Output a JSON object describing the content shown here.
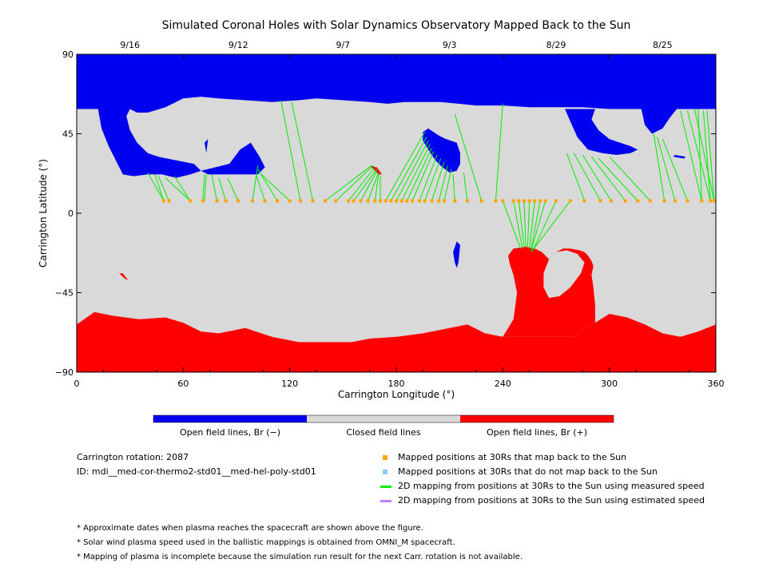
{
  "chart_data": {
    "type": "map",
    "title": "Simulated Coronal Holes with Solar Dynamics Observatory Mapped Back to the Sun",
    "xlabel": "Carrington Longitude (°)",
    "ylabel": "Carrington Latitude (°)",
    "xlim": [
      0,
      360
    ],
    "ylim": [
      -90,
      90
    ],
    "x_ticks": [
      "0",
      "60",
      "120",
      "180",
      "240",
      "300",
      "360"
    ],
    "y_ticks": [
      "90",
      "45",
      "0",
      "−45",
      "−90"
    ],
    "date_ticks": [
      {
        "lon": 30,
        "label": "9/16"
      },
      {
        "lon": 91,
        "label": "9/12"
      },
      {
        "lon": 150,
        "label": "9/7"
      },
      {
        "lon": 210,
        "label": "9/3"
      },
      {
        "lon": 270,
        "label": "8/29"
      },
      {
        "lon": 330,
        "label": "8/25"
      }
    ],
    "colors": {
      "open_negative": "#0000f0",
      "closed": "#d9d9d9",
      "open_positive": "#ff0000",
      "mapped_back": "#ffa500",
      "not_mapped_back": "#87cefa",
      "measured_speed": "#00ee00",
      "estimated_speed": "#c080ff"
    },
    "regions": {
      "north_cap_boundary": [
        [
          0,
          59
        ],
        [
          30,
          59
        ],
        [
          34,
          57
        ],
        [
          40,
          57
        ],
        [
          50,
          60
        ],
        [
          60,
          65
        ],
        [
          70,
          66
        ],
        [
          80,
          65
        ],
        [
          95,
          64
        ],
        [
          110,
          63
        ],
        [
          125,
          64
        ],
        [
          135,
          65
        ],
        [
          150,
          64
        ],
        [
          165,
          63
        ],
        [
          175,
          62
        ],
        [
          185,
          63
        ],
        [
          195,
          63
        ],
        [
          205,
          63
        ],
        [
          215,
          62
        ],
        [
          225,
          61
        ],
        [
          240,
          61
        ],
        [
          255,
          60
        ],
        [
          270,
          60
        ],
        [
          285,
          60
        ],
        [
          300,
          59
        ],
        [
          315,
          59
        ],
        [
          330,
          59
        ],
        [
          345,
          59
        ],
        [
          360,
          59
        ]
      ],
      "south_cap_boundary": [
        [
          0,
          -63
        ],
        [
          10,
          -56
        ],
        [
          20,
          -58
        ],
        [
          35,
          -60
        ],
        [
          50,
          -59
        ],
        [
          60,
          -62
        ],
        [
          70,
          -67
        ],
        [
          80,
          -68
        ],
        [
          95,
          -65
        ],
        [
          110,
          -70
        ],
        [
          125,
          -73
        ],
        [
          140,
          -73
        ],
        [
          155,
          -73
        ],
        [
          165,
          -71
        ],
        [
          180,
          -70
        ],
        [
          195,
          -68
        ],
        [
          210,
          -65
        ],
        [
          220,
          -63
        ],
        [
          230,
          -68
        ],
        [
          240,
          -70
        ],
        [
          250,
          -70
        ],
        [
          280,
          -70
        ],
        [
          292,
          -62
        ],
        [
          300,
          -57
        ],
        [
          310,
          -59
        ],
        [
          320,
          -63
        ],
        [
          330,
          -68
        ],
        [
          340,
          -70
        ],
        [
          350,
          -67
        ],
        [
          360,
          -63
        ]
      ]
    },
    "mapped_positions_lat": 7,
    "mapped_positions_lon": [
      49,
      52,
      64,
      71,
      79,
      84,
      91,
      99,
      106,
      113,
      120,
      126,
      133,
      140,
      146,
      153,
      156,
      160,
      164,
      168,
      171,
      174,
      177,
      180,
      183,
      186,
      189,
      193,
      196,
      200,
      204,
      207,
      213,
      220,
      228,
      236,
      240,
      246,
      249,
      252,
      255,
      258,
      261,
      264,
      270,
      278,
      286,
      295,
      301,
      309,
      316,
      323,
      331,
      337,
      344,
      352,
      357,
      359
    ],
    "field_lines": [
      [
        [
          49,
          7
        ],
        [
          40,
          23
        ]
      ],
      [
        [
          49,
          7
        ],
        [
          44,
          22
        ]
      ],
      [
        [
          52,
          7
        ],
        [
          46,
          21
        ]
      ],
      [
        [
          64,
          7
        ],
        [
          50,
          20
        ]
      ],
      [
        [
          64,
          7
        ],
        [
          55,
          21
        ]
      ],
      [
        [
          71,
          7
        ],
        [
          72,
          22
        ]
      ],
      [
        [
          72,
          7
        ],
        [
          73,
          22
        ]
      ],
      [
        [
          79,
          7
        ],
        [
          76,
          22
        ]
      ],
      [
        [
          84,
          7
        ],
        [
          80,
          20
        ]
      ],
      [
        [
          91,
          7
        ],
        [
          85,
          20
        ]
      ],
      [
        [
          99,
          7
        ],
        [
          102,
          27
        ]
      ],
      [
        [
          106,
          7
        ],
        [
          101,
          22
        ]
      ],
      [
        [
          113,
          7
        ],
        [
          102,
          25
        ]
      ],
      [
        [
          120,
          7
        ],
        [
          104,
          22
        ]
      ],
      [
        [
          126,
          7
        ],
        [
          115,
          64
        ]
      ],
      [
        [
          133,
          7
        ],
        [
          121,
          63
        ]
      ],
      [
        [
          140,
          7
        ],
        [
          166,
          27
        ]
      ],
      [
        [
          146,
          7
        ],
        [
          167,
          27
        ]
      ],
      [
        [
          153,
          7
        ],
        [
          168,
          26
        ]
      ],
      [
        [
          156,
          7
        ],
        [
          169,
          25
        ]
      ],
      [
        [
          160,
          7
        ],
        [
          169,
          24
        ]
      ],
      [
        [
          164,
          7
        ],
        [
          170,
          23
        ]
      ],
      [
        [
          168,
          7
        ],
        [
          170,
          22
        ]
      ],
      [
        [
          171,
          7
        ],
        [
          171,
          21
        ]
      ],
      [
        [
          174,
          7
        ],
        [
          196,
          46
        ]
      ],
      [
        [
          177,
          7
        ],
        [
          197,
          43
        ]
      ],
      [
        [
          180,
          7
        ],
        [
          198,
          41
        ]
      ],
      [
        [
          183,
          7
        ],
        [
          199,
          39
        ]
      ],
      [
        [
          186,
          7
        ],
        [
          200,
          37
        ]
      ],
      [
        [
          189,
          7
        ],
        [
          201,
          35
        ]
      ],
      [
        [
          193,
          7
        ],
        [
          203,
          33
        ]
      ],
      [
        [
          196,
          7
        ],
        [
          205,
          31
        ]
      ],
      [
        [
          200,
          7
        ],
        [
          207,
          29
        ]
      ],
      [
        [
          204,
          7
        ],
        [
          209,
          27
        ]
      ],
      [
        [
          207,
          7
        ],
        [
          211,
          25
        ]
      ],
      [
        [
          213,
          7
        ],
        [
          212,
          22
        ]
      ],
      [
        [
          220,
          7
        ],
        [
          218,
          23
        ]
      ],
      [
        [
          228,
          7
        ],
        [
          213,
          56
        ]
      ],
      [
        [
          236,
          7
        ],
        [
          240,
          62
        ]
      ],
      [
        [
          240,
          7
        ],
        [
          250,
          -20
        ]
      ],
      [
        [
          246,
          7
        ],
        [
          251,
          -20
        ]
      ],
      [
        [
          249,
          7
        ],
        [
          252,
          -19
        ]
      ],
      [
        [
          252,
          7
        ],
        [
          253,
          -19
        ]
      ],
      [
        [
          255,
          7
        ],
        [
          254,
          -19
        ]
      ],
      [
        [
          258,
          7
        ],
        [
          255,
          -20
        ]
      ],
      [
        [
          261,
          7
        ],
        [
          256,
          -20
        ]
      ],
      [
        [
          264,
          7
        ],
        [
          256,
          -21
        ]
      ],
      [
        [
          270,
          7
        ],
        [
          257,
          -21
        ]
      ],
      [
        [
          278,
          7
        ],
        [
          256,
          -22
        ]
      ],
      [
        [
          286,
          7
        ],
        [
          276,
          34
        ]
      ],
      [
        [
          295,
          7
        ],
        [
          280,
          34
        ]
      ],
      [
        [
          301,
          7
        ],
        [
          285,
          33
        ]
      ],
      [
        [
          309,
          7
        ],
        [
          290,
          32
        ]
      ],
      [
        [
          316,
          7
        ],
        [
          294,
          31
        ]
      ],
      [
        [
          323,
          7
        ],
        [
          300,
          32
        ]
      ],
      [
        [
          331,
          7
        ],
        [
          325,
          45
        ]
      ],
      [
        [
          337,
          7
        ],
        [
          327,
          43
        ]
      ],
      [
        [
          344,
          7
        ],
        [
          330,
          42
        ]
      ],
      [
        [
          352,
          7
        ],
        [
          340,
          58
        ]
      ],
      [
        [
          357,
          7
        ],
        [
          344,
          58
        ]
      ],
      [
        [
          359,
          7
        ],
        [
          348,
          59
        ]
      ],
      [
        [
          352,
          7
        ],
        [
          350,
          59
        ]
      ],
      [
        [
          357,
          7
        ],
        [
          353,
          58
        ]
      ],
      [
        [
          359,
          7
        ],
        [
          355,
          58
        ]
      ]
    ],
    "colorbar": [
      {
        "label": "Open field lines, Br (−)",
        "color": "#0000f0"
      },
      {
        "label": "Closed field lines",
        "color": "#d9d9d9"
      },
      {
        "label": "Open field lines, Br (+)",
        "color": "#ff0000"
      }
    ]
  },
  "info": {
    "rotation": "Carrington rotation: 2087",
    "id": "ID: mdi__med-cor-thermo2-std01__med-hel-poly-std01"
  },
  "legend": [
    {
      "label": "Mapped positions at 30Rs that map back to the Sun",
      "symbol": "square",
      "color": "#ffa500"
    },
    {
      "label": "Mapped positions at 30Rs that do not map back to the Sun",
      "symbol": "square",
      "color": "#87cefa"
    },
    {
      "label": "2D mapping from positions at 30Rs to the Sun using measured speed",
      "symbol": "line",
      "color": "#00ee00"
    },
    {
      "label": "2D mapping from positions at 30Rs to the Sun using estimated speed",
      "symbol": "line",
      "color": "#c080ff"
    }
  ],
  "notes": [
    "* Approximate dates when plasma reaches the spacecraft are shown above the figure.",
    "* Solar wind plasma speed used in the ballistic mappings is obtained from OMNI_M spacecraft.",
    "* Mapping of plasma is incomplete because the simulation run result for the next Carr. rotation is not available."
  ]
}
